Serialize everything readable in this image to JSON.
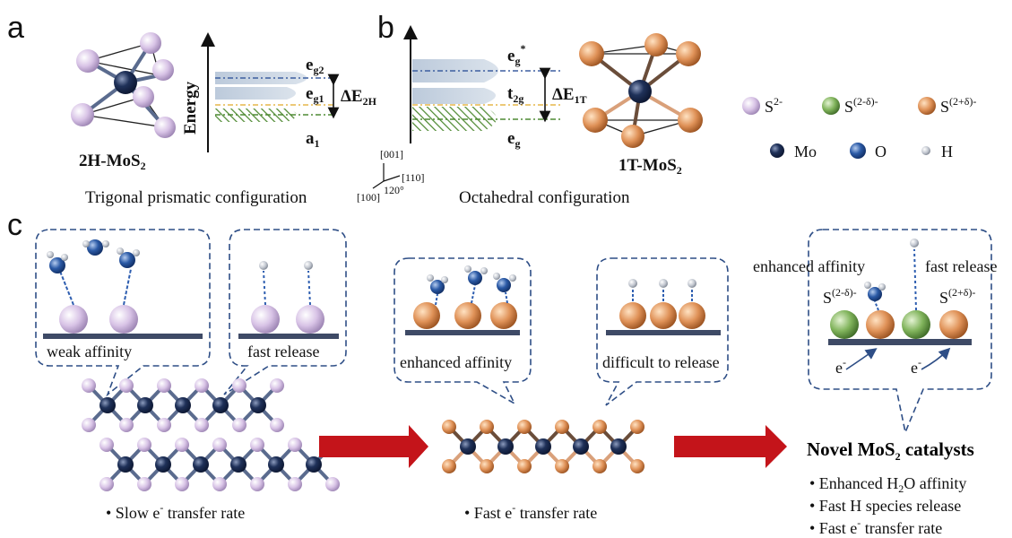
{
  "panels": {
    "a": "a",
    "b": "b",
    "c": "c"
  },
  "panel_a": {
    "axis_label": "Energy",
    "eg2_main": "e",
    "eg2_sub": "g2",
    "eg1_main": "e",
    "eg1_sub": "g1",
    "a1_main": "a",
    "a1_sub": "1",
    "delta_main": "ΔE",
    "delta_sub": "2H",
    "structure_main": "2H-MoS",
    "structure_sub": "2",
    "caption": "Trigonal prismatic configuration"
  },
  "panel_b": {
    "egstar_main": "e",
    "egstar_sub": "g",
    "egstar_sup": "*",
    "t2g_main": "t",
    "t2g_sub": "2g",
    "eg_main": "e",
    "eg_sub": "g",
    "delta_main": "ΔE",
    "delta_sub": "1T",
    "structure_main": "1T-MoS",
    "structure_sub": "2",
    "caption": "Octahedral configuration",
    "axis_001": "[001]",
    "axis_110": "[110]",
    "axis_100": "[100]",
    "angle": "120°"
  },
  "legend": {
    "s2": {
      "main": "S",
      "sup": "2-"
    },
    "s2md": {
      "main": "S",
      "sup": "(2-δ)-"
    },
    "s2pd": {
      "main": "S",
      "sup": "(2+δ)-"
    },
    "mo": "Mo",
    "o": "O",
    "h": "H"
  },
  "panel_c": {
    "bubble1": "weak affinity",
    "bubble2": "fast release",
    "bubble3": "enhanced affinity",
    "bubble4": "difficult to release",
    "bubble5_left": "enhanced affinity",
    "bubble5_right": "fast release",
    "s_md": {
      "main": "S",
      "sup": "(2-δ)-"
    },
    "s_pd": {
      "main": "S",
      "sup": "(2+δ)-"
    },
    "electron": "e",
    "electron_sup": "-",
    "slow": "• Slow e",
    "fast": "• Fast e",
    "rate_suffix": " transfer rate",
    "novel_main": "Novel MoS",
    "novel_sub": "2",
    "novel_tail": " catalysts",
    "b1_pre": "• Enhanced H",
    "b1_sub": "2",
    "b1_post": "O affinity",
    "b2": "• Fast H species release",
    "b3_pre": "• Fast e",
    "b3_post": " transfer rate"
  },
  "colors": {
    "s_lilac": "#d9c6e6",
    "s_green": "#7fb05a",
    "s_orange": "#e0975a",
    "mo_navy": "#1c2d52",
    "o_blue": "#2a5aa8",
    "h_grey": "#b7bcc6",
    "arrow_red": "#c4141a",
    "bubble_blue": "#2e4e86",
    "band_blue": "#c3cfdc"
  }
}
